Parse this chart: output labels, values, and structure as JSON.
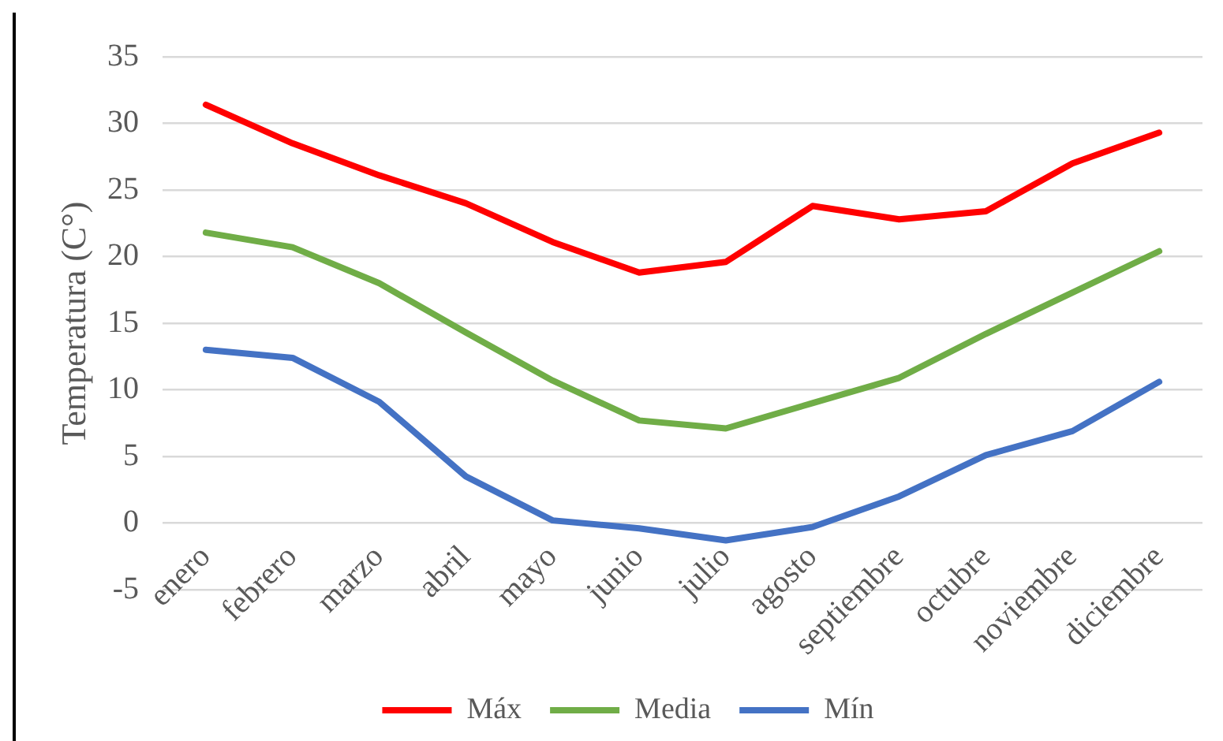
{
  "chart_data": {
    "type": "line",
    "categories": [
      "enero",
      "febrero",
      "marzo",
      "abril",
      "mayo",
      "junio",
      "julio",
      "agosto",
      "septiembre",
      "octubre",
      "noviembre",
      "diciembre"
    ],
    "series": [
      {
        "name": "Máx",
        "color": "#ff0000",
        "values": [
          31.4,
          28.5,
          26.1,
          24.0,
          21.1,
          18.8,
          19.6,
          23.8,
          22.8,
          23.4,
          27.0,
          29.3
        ]
      },
      {
        "name": "Media",
        "color": "#70ad47",
        "values": [
          21.8,
          20.7,
          18.0,
          14.3,
          10.7,
          7.7,
          7.1,
          9.0,
          10.9,
          14.2,
          17.3,
          20.4
        ]
      },
      {
        "name": "Mín",
        "color": "#4472c4",
        "values": [
          13.0,
          12.4,
          9.1,
          3.5,
          0.2,
          -0.4,
          -1.3,
          -0.3,
          2.0,
          5.1,
          6.9,
          10.6
        ]
      }
    ],
    "ylabel": "Temperatura (C°)",
    "ylim": [
      -5,
      35
    ],
    "yticks": [
      -5,
      0,
      5,
      10,
      15,
      20,
      25,
      30,
      35
    ],
    "grid": "y",
    "legend": "bottom"
  }
}
